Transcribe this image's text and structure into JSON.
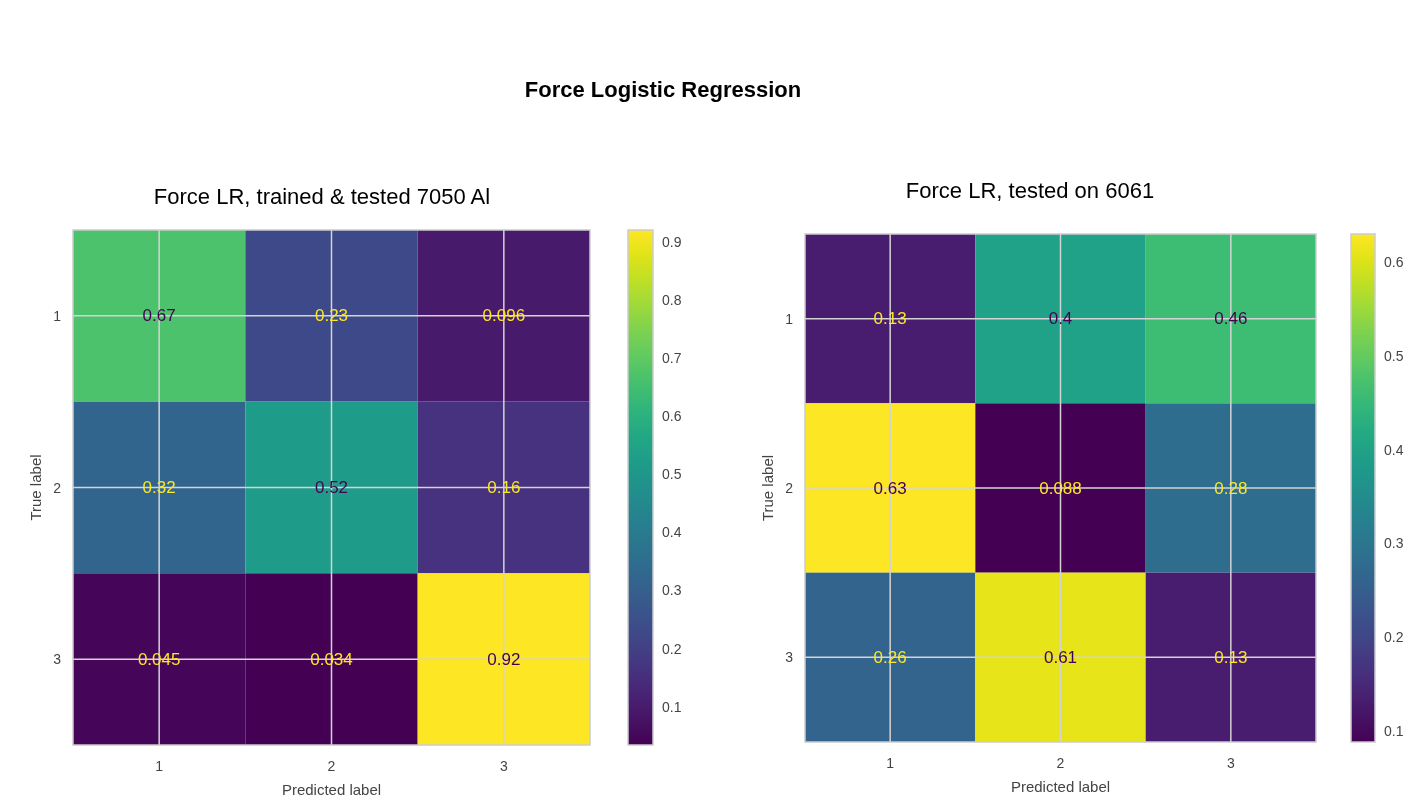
{
  "chart_data": [
    {
      "type": "other",
      "title": "Force Logistic Regression"
    },
    {
      "type": "heatmap",
      "title": "Force LR, trained & tested 7050 Al",
      "xlabel": "Predicted label",
      "ylabel": "True label",
      "categories": [
        "1",
        "2",
        "3"
      ],
      "y_categories": [
        "1",
        "2",
        "3"
      ],
      "cells": [
        [
          0.67,
          0.23,
          0.096
        ],
        [
          0.32,
          0.52,
          0.16
        ],
        [
          0.045,
          0.034,
          0.92
        ]
      ],
      "clim": [
        0.034,
        0.92
      ],
      "cticks": [
        0.1,
        0.2,
        0.3,
        0.4,
        0.5,
        0.6,
        0.7,
        0.8,
        0.9
      ],
      "data_labels": true,
      "grid": true
    },
    {
      "type": "heatmap",
      "title": "Force LR, tested on 6061",
      "xlabel": "Predicted label",
      "ylabel": "True label",
      "categories": [
        "1",
        "2",
        "3"
      ],
      "y_categories": [
        "1",
        "2",
        "3"
      ],
      "cells": [
        [
          0.13,
          0.4,
          0.46
        ],
        [
          0.63,
          0.088,
          0.28
        ],
        [
          0.26,
          0.61,
          0.13
        ]
      ],
      "clim": [
        0.088,
        0.63
      ],
      "cticks": [
        0.1,
        0.2,
        0.3,
        0.4,
        0.5,
        0.6
      ],
      "data_labels": true,
      "grid": true
    }
  ]
}
